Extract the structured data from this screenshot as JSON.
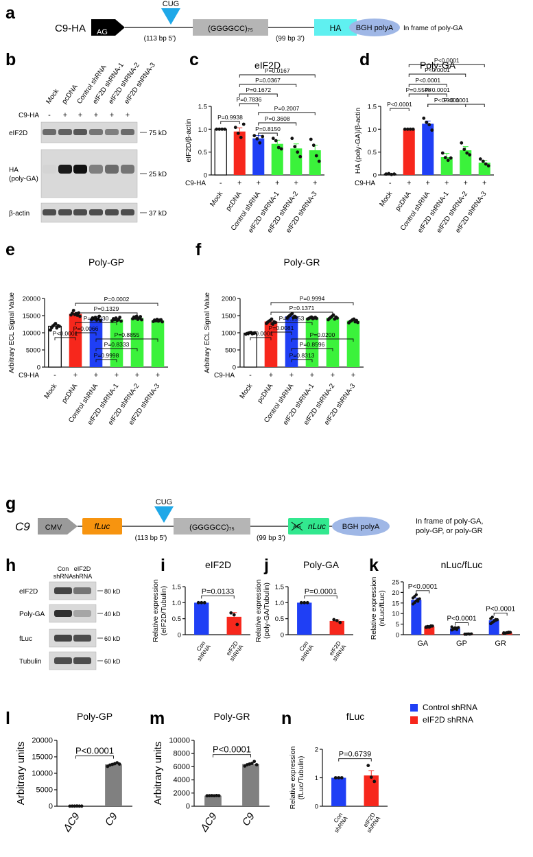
{
  "panel_labels": [
    "a",
    "b",
    "c",
    "d",
    "e",
    "f",
    "g",
    "h",
    "i",
    "j",
    "k",
    "l",
    "m",
    "n"
  ],
  "construct_a": {
    "label": "C9-HA",
    "ag": "AG",
    "cug": "CUG",
    "left": "(113 bp 5')",
    "repeat": "(GGGGCC)₇₅",
    "right": "(99 bp 3')",
    "tag": "HA",
    "polya": "BGH polyA",
    "note": "In frame of poly-GA"
  },
  "blot_b": {
    "lanes": [
      "Mock",
      "pcDNA",
      "Control shRNA",
      "eIF2D shRNA-1",
      "eIF2D shRNA-2",
      "eIF2D shRNA-3"
    ],
    "row_label": "C9-HA",
    "signs": [
      "-",
      "+",
      "+",
      "+",
      "+",
      "+"
    ],
    "rows": [
      {
        "name": "eIF2D",
        "marker": "75 kD"
      },
      {
        "name": "HA\n(poly-GA)",
        "marker": "25 kD"
      },
      {
        "name": "β-actin",
        "marker": "37 kD"
      }
    ]
  },
  "construct_g": {
    "label": "C9",
    "promoter": "CMV",
    "reporter": "fLuc",
    "cug": "CUG",
    "left": "(113 bp 5')",
    "repeat": "(GGGGCC)₇₅",
    "right": "(99 bp 3')",
    "tag": "nLuc",
    "ag": "AG",
    "polya": "BGH polyA",
    "note": "In frame of poly-GA,\npoly-GP, or poly-GR"
  },
  "blot_h": {
    "lanes": [
      "Con\nshRNA",
      "eIF2D\nshRNA"
    ],
    "rows": [
      {
        "name": "eIF2D",
        "marker": "80 kD"
      },
      {
        "name": "Poly-GA",
        "marker": "40 kD"
      },
      {
        "name": "fLuc",
        "marker": "60 kD"
      },
      {
        "name": "Tubulin",
        "marker": "60 kD"
      }
    ]
  },
  "legend_k": [
    {
      "name": "Control shRNA",
      "color": "#1f3ff5"
    },
    {
      "name": "eIF2D shRNA",
      "color": "#f7271c"
    }
  ],
  "chart_data": [
    {
      "id": "c",
      "type": "bar",
      "title": "eIF2D",
      "ylabel": "eIF2D/β-actin",
      "xlabel": "",
      "ylim": [
        0,
        1.5
      ],
      "yticks": [
        0,
        0.5,
        1.0,
        1.5
      ],
      "ytick_labels": [
        "0",
        "0.5",
        "1.0",
        "1.5"
      ],
      "categories": [
        "Mock",
        "pcDNA",
        "Control shRNA",
        "eIF2D shRNA-1",
        "eIF2D shRNA-2",
        "eIF2D shRNA-3"
      ],
      "values": [
        1.0,
        0.95,
        0.8,
        0.68,
        0.58,
        0.54
      ],
      "errors": [
        0,
        0.08,
        0.06,
        0.08,
        0.1,
        0.11
      ],
      "colors": [
        "#ffffff",
        "#f7271c",
        "#1f3ff5",
        "#3bf23b",
        "#3bf23b",
        "#3bf23b"
      ],
      "points": [
        [
          1,
          1,
          1,
          1
        ],
        [
          1.04,
          0.91,
          0.82,
          1.11
        ],
        [
          0.86,
          0.79,
          0.7,
          0.84
        ],
        [
          0.8,
          0.75,
          0.6,
          0.57
        ],
        [
          0.8,
          0.62,
          0.5,
          0.4
        ],
        [
          0.78,
          0.65,
          0.42,
          0.3
        ]
      ],
      "treatment_label": "C9-HA",
      "treatment": [
        "-",
        "+",
        "+",
        "+",
        "+",
        "+"
      ],
      "comparisons": [
        {
          "from": 0,
          "to": 1,
          "p": "P=0.9938"
        },
        {
          "from": 2,
          "to": 3,
          "p": "P=0.8150"
        },
        {
          "from": 2,
          "to": 4,
          "p": "P=0.3608"
        },
        {
          "from": 2,
          "to": 5,
          "p": "P=0.2007"
        },
        {
          "from": 1,
          "to": 2,
          "p": "P=0.7836"
        },
        {
          "from": 1,
          "to": 3,
          "p": "P=0.1672"
        },
        {
          "from": 1,
          "to": 4,
          "p": "P=0.0367"
        },
        {
          "from": 1,
          "to": 5,
          "p": "P=0.0167"
        }
      ]
    },
    {
      "id": "d",
      "type": "bar",
      "title": "Poly-GA",
      "ylabel": "HA (poly-GA)/β-actin",
      "xlabel": "",
      "ylim": [
        0,
        1.5
      ],
      "yticks": [
        0,
        0.5,
        1.0,
        1.5
      ],
      "ytick_labels": [
        "0",
        "0.5",
        "1.0",
        "1.5"
      ],
      "categories": [
        "Mock",
        "pcDNA",
        "Control shRNA",
        "eIF2D shRNA-1",
        "eIF2D shRNA-2",
        "eIF2D shRNA-3"
      ],
      "values": [
        0.02,
        1.0,
        1.12,
        0.39,
        0.54,
        0.27
      ],
      "errors": [
        0.01,
        0,
        0.06,
        0.08,
        0.08,
        0.05
      ],
      "colors": [
        "#ffffff",
        "#f7271c",
        "#1f3ff5",
        "#3bf23b",
        "#3bf23b",
        "#3bf23b"
      ],
      "points": [
        [
          0.02,
          0.03,
          0.01,
          0.02
        ],
        [
          1,
          1,
          1,
          1
        ],
        [
          1.24,
          1.15,
          1.1,
          0.98
        ],
        [
          0.48,
          0.38,
          0.32,
          0.37
        ],
        [
          0.7,
          0.56,
          0.48,
          0.44
        ],
        [
          0.35,
          0.3,
          0.24,
          0.2
        ]
      ],
      "treatment_label": "C9-HA",
      "treatment": [
        "-",
        "+",
        "+",
        "+",
        "+",
        "+"
      ],
      "comparisons": [
        {
          "from": 0,
          "to": 1,
          "p": "P<0.0001"
        },
        {
          "from": 2,
          "to": 3,
          "p": "P<0.0001"
        },
        {
          "from": 2,
          "to": 4,
          "p": "P<0.0001"
        },
        {
          "from": 2,
          "to": 5,
          "p": "P<0.0001"
        },
        {
          "from": 1,
          "to": 2,
          "p": "P=0.5548"
        },
        {
          "from": 1,
          "to": 3,
          "p": "P<0.0001"
        },
        {
          "from": 1,
          "to": 4,
          "p": "P<0.0001"
        },
        {
          "from": 1,
          "to": 5,
          "p": "P<0.0001"
        }
      ]
    },
    {
      "id": "e",
      "type": "bar",
      "title": "Poly-GP",
      "ylabel": "Arbitrary ECL Signal Value",
      "xlabel": "",
      "ylim": [
        0,
        20000
      ],
      "yticks": [
        0,
        5000,
        10000,
        15000,
        20000
      ],
      "ytick_labels": [
        "0",
        "5000",
        "10000",
        "15000",
        "20000"
      ],
      "categories": [
        "Mock",
        "pcDNA",
        "Control shRNA",
        "eIF2D shRNA-1",
        "eIF2D shRNA-2",
        "eIF2D shRNA-3"
      ],
      "values": [
        11900,
        15500,
        14100,
        13900,
        14300,
        13600
      ],
      "errors": [
        350,
        300,
        300,
        250,
        300,
        200
      ],
      "colors": [
        "#ffffff",
        "#f7271c",
        "#1f3ff5",
        "#3bf23b",
        "#3bf23b",
        "#3bf23b"
      ],
      "points": [
        [
          10800,
          11500,
          12000,
          12300,
          12700,
          11400,
          12100,
          11900
        ],
        [
          15200,
          15700,
          16500,
          15300,
          15600,
          15100,
          15800,
          14800
        ],
        [
          13800,
          14300,
          14100,
          14500,
          13700,
          14000,
          14800,
          13600
        ],
        [
          13500,
          14100,
          13800,
          14300,
          13600,
          13900,
          14500,
          13400
        ],
        [
          14100,
          14600,
          14300,
          14800,
          13900,
          14300,
          14700,
          13800
        ],
        [
          13300,
          13700,
          13500,
          13900,
          13400,
          13700,
          13800,
          13200
        ]
      ],
      "treatment_label": "C9-HA",
      "treatment": [
        "-",
        "+",
        "+",
        "+",
        "+",
        "+"
      ],
      "comparisons": [
        {
          "from": 0,
          "to": 1,
          "p": "P<0.0001"
        },
        {
          "from": 2,
          "to": 3,
          "p": "P=0.9998"
        },
        {
          "from": 2,
          "to": 4,
          "p": "P=0.8333"
        },
        {
          "from": 2,
          "to": 5,
          "p": "P=0.8855"
        },
        {
          "from": 1,
          "to": 2,
          "p": "P=0.0066"
        },
        {
          "from": 1,
          "to": 3,
          "p": "P=0.0030"
        },
        {
          "from": 1,
          "to": 4,
          "p": "P=0.1329"
        },
        {
          "from": 1,
          "to": 5,
          "p": "P=0.0002"
        }
      ]
    },
    {
      "id": "f",
      "type": "bar",
      "title": "Poly-GR",
      "ylabel": "Arbitrary ECL Signal Value",
      "xlabel": "",
      "ylim": [
        0,
        2000
      ],
      "yticks": [
        0,
        500,
        1000,
        1500,
        2000
      ],
      "ytick_labels": [
        "0",
        "500",
        "1000",
        "1500",
        "2000"
      ],
      "categories": [
        "Mock",
        "pcDNA",
        "Control shRNA",
        "eIF2D shRNA-1",
        "eIF2D shRNA-2",
        "eIF2D shRNA-3"
      ],
      "values": [
        990,
        1330,
        1480,
        1430,
        1440,
        1350
      ],
      "errors": [
        20,
        30,
        30,
        25,
        35,
        30
      ],
      "colors": [
        "#ffffff",
        "#f7271c",
        "#1f3ff5",
        "#3bf23b",
        "#3bf23b",
        "#3bf23b"
      ],
      "points": [
        [
          960,
          980,
          990,
          1000,
          1010,
          970,
          990,
          1000
        ],
        [
          1270,
          1310,
          1340,
          1360,
          1400,
          1250,
          1320,
          1300
        ],
        [
          1430,
          1470,
          1500,
          1530,
          1560,
          1440,
          1480,
          1450
        ],
        [
          1400,
          1420,
          1440,
          1460,
          1410,
          1430,
          1450,
          1420
        ],
        [
          1380,
          1420,
          1450,
          1480,
          1520,
          1400,
          1460,
          1430
        ],
        [
          1290,
          1330,
          1350,
          1380,
          1400,
          1320,
          1360,
          1300
        ]
      ],
      "treatment_label": "C9-HA",
      "treatment": [
        "-",
        "+",
        "+",
        "+",
        "+",
        "+"
      ],
      "comparisons": [
        {
          "from": 0,
          "to": 1,
          "p": "P<0.0001"
        },
        {
          "from": 2,
          "to": 3,
          "p": "P=0.8313"
        },
        {
          "from": 2,
          "to": 4,
          "p": "P=0.8596"
        },
        {
          "from": 2,
          "to": 5,
          "p": "P=0.0200"
        },
        {
          "from": 1,
          "to": 2,
          "p": "P=0.0081"
        },
        {
          "from": 1,
          "to": 3,
          "p": "P=0.1553"
        },
        {
          "from": 1,
          "to": 4,
          "p": "P=0.1371"
        },
        {
          "from": 1,
          "to": 5,
          "p": "P=0.9994"
        }
      ]
    },
    {
      "id": "i",
      "type": "bar",
      "title": "eIF2D",
      "ylabel": "Relative expression\n(eIF2D/Tubulin)",
      "xlabel": "",
      "ylim": [
        0,
        1.5
      ],
      "yticks": [
        0,
        0.5,
        1.0,
        1.5
      ],
      "ytick_labels": [
        "0",
        "0.5",
        "1.0",
        "1.5"
      ],
      "categories": [
        "Con\nshRNA",
        "eIF2D\nshRNA"
      ],
      "values": [
        1.0,
        0.56
      ],
      "errors": [
        0,
        0.13
      ],
      "colors": [
        "#1f3ff5",
        "#f7271c"
      ],
      "points": [
        [
          1,
          1,
          1
        ],
        [
          0.68,
          0.62,
          0.32
        ]
      ],
      "comparisons": [
        {
          "from": 0,
          "to": 1,
          "p": "P=0.0133"
        }
      ]
    },
    {
      "id": "j",
      "type": "bar",
      "title": "Poly-GA",
      "ylabel": "Relative expression\n(poly-GA/Tubulin)",
      "xlabel": "",
      "ylim": [
        0,
        1.5
      ],
      "yticks": [
        0,
        0.5,
        1.0,
        1.5
      ],
      "ytick_labels": [
        "0",
        "0.5",
        "1.0",
        "1.5"
      ],
      "categories": [
        "Con\nshRNA",
        "eIF2D\nshRNA"
      ],
      "values": [
        1.0,
        0.43
      ],
      "errors": [
        0,
        0.03
      ],
      "colors": [
        "#1f3ff5",
        "#f7271c"
      ],
      "points": [
        [
          1,
          1,
          1
        ],
        [
          0.47,
          0.44,
          0.38
        ]
      ],
      "comparisons": [
        {
          "from": 0,
          "to": 1,
          "p": "P=0.0001"
        }
      ]
    },
    {
      "id": "k",
      "type": "bar",
      "title": "nLuc/fLuc",
      "ylabel": "Relative expression\n(nLuc/fLuc)",
      "xlabel": "",
      "ylim": [
        0,
        25
      ],
      "yticks": [
        0,
        5,
        10,
        15,
        20,
        25
      ],
      "ytick_labels": [
        "0",
        "5",
        "10",
        "15",
        "20",
        "25"
      ],
      "categories": [
        "GA",
        "GP",
        "GR"
      ],
      "series": [
        {
          "name": "Control shRNA",
          "color": "#1f3ff5",
          "values": [
            16.5,
            3.0,
            6.8
          ],
          "errors": [
            0.8,
            0.3,
            0.5
          ],
          "points": [
            [
              14.5,
              15.2,
              16,
              16.6,
              17,
              17.4,
              18.1,
              18.9,
              15.8
            ],
            [
              2.2,
              2.6,
              2.9,
              3.1,
              3.4,
              3.7,
              2.8,
              3.3,
              2.4
            ],
            [
              5.2,
              5.8,
              6.3,
              6.8,
              7.1,
              7.6,
              8.3,
              6.5,
              7.2
            ]
          ]
        },
        {
          "name": "eIF2D shRNA",
          "color": "#f7271c",
          "values": [
            3.8,
            0.3,
            0.9
          ],
          "errors": [
            0.2,
            0.05,
            0.1
          ],
          "points": [
            [
              3.4,
              3.6,
              3.8,
              4.0,
              4.1,
              3.7,
              3.9,
              3.5,
              4.2
            ],
            [
              0.2,
              0.3,
              0.35,
              0.25,
              0.4,
              0.3,
              0.2,
              0.35,
              0.3
            ],
            [
              0.6,
              0.8,
              0.9,
              1.0,
              1.1,
              0.9,
              0.7,
              1.0,
              1.2
            ]
          ]
        }
      ],
      "comparisons": [
        {
          "group": 0,
          "p": "P<0.0001"
        },
        {
          "group": 1,
          "p": "P<0.0001"
        },
        {
          "group": 2,
          "p": "P<0.0001"
        }
      ]
    },
    {
      "id": "l",
      "type": "bar",
      "title": "Poly-GP",
      "ylabel": "Arbitrary units",
      "xlabel": "",
      "ylim": [
        0,
        20000
      ],
      "yticks": [
        0,
        5000,
        10000,
        15000,
        20000
      ],
      "ytick_labels": [
        "0",
        "5000",
        "10000",
        "15000",
        "20000"
      ],
      "categories": [
        "ΔC9",
        "C9"
      ],
      "values": [
        50,
        12700
      ],
      "errors": [
        20,
        250
      ],
      "colors": [
        "#808080",
        "#808080"
      ],
      "points": [
        [
          30,
          50,
          40,
          60,
          50,
          40
        ],
        [
          12100,
          12500,
          12700,
          12900,
          13200,
          12800
        ]
      ],
      "comparisons": [
        {
          "from": 0,
          "to": 1,
          "p": "P<0.0001"
        }
      ]
    },
    {
      "id": "m",
      "type": "bar",
      "title": "Poly-GR",
      "ylabel": "Arbitrary units",
      "xlabel": "",
      "ylim": [
        0,
        10000
      ],
      "yticks": [
        0,
        2000,
        4000,
        6000,
        8000,
        10000
      ],
      "ytick_labels": [
        "0",
        "2000",
        "4000",
        "6000",
        "8000",
        "10000"
      ],
      "categories": [
        "ΔC9",
        "C9"
      ],
      "values": [
        1600,
        6400
      ],
      "errors": [
        20,
        150
      ],
      "colors": [
        "#808080",
        "#808080"
      ],
      "points": [
        [
          1580,
          1600,
          1610,
          1590,
          1620,
          1600
        ],
        [
          6100,
          6300,
          6400,
          6500,
          6800,
          6300
        ]
      ],
      "comparisons": [
        {
          "from": 0,
          "to": 1,
          "p": "P<0.0001"
        }
      ]
    },
    {
      "id": "n",
      "type": "bar",
      "title": "fLuc",
      "ylabel": "Relative expression\n(fLuc/Tubulin)",
      "xlabel": "",
      "ylim": [
        0,
        2
      ],
      "yticks": [
        0,
        1,
        2
      ],
      "ytick_labels": [
        "0",
        "1",
        "2"
      ],
      "categories": [
        "Con\nshRNA",
        "eIF2D\nshRNA"
      ],
      "values": [
        1.0,
        1.08
      ],
      "errors": [
        0,
        0.17
      ],
      "colors": [
        "#1f3ff5",
        "#f7271c"
      ],
      "points": [
        [
          1,
          1,
          1
        ],
        [
          1.43,
          1.02,
          0.87
        ]
      ],
      "comparisons": [
        {
          "from": 0,
          "to": 1,
          "p": "P=0.6739"
        }
      ]
    }
  ]
}
